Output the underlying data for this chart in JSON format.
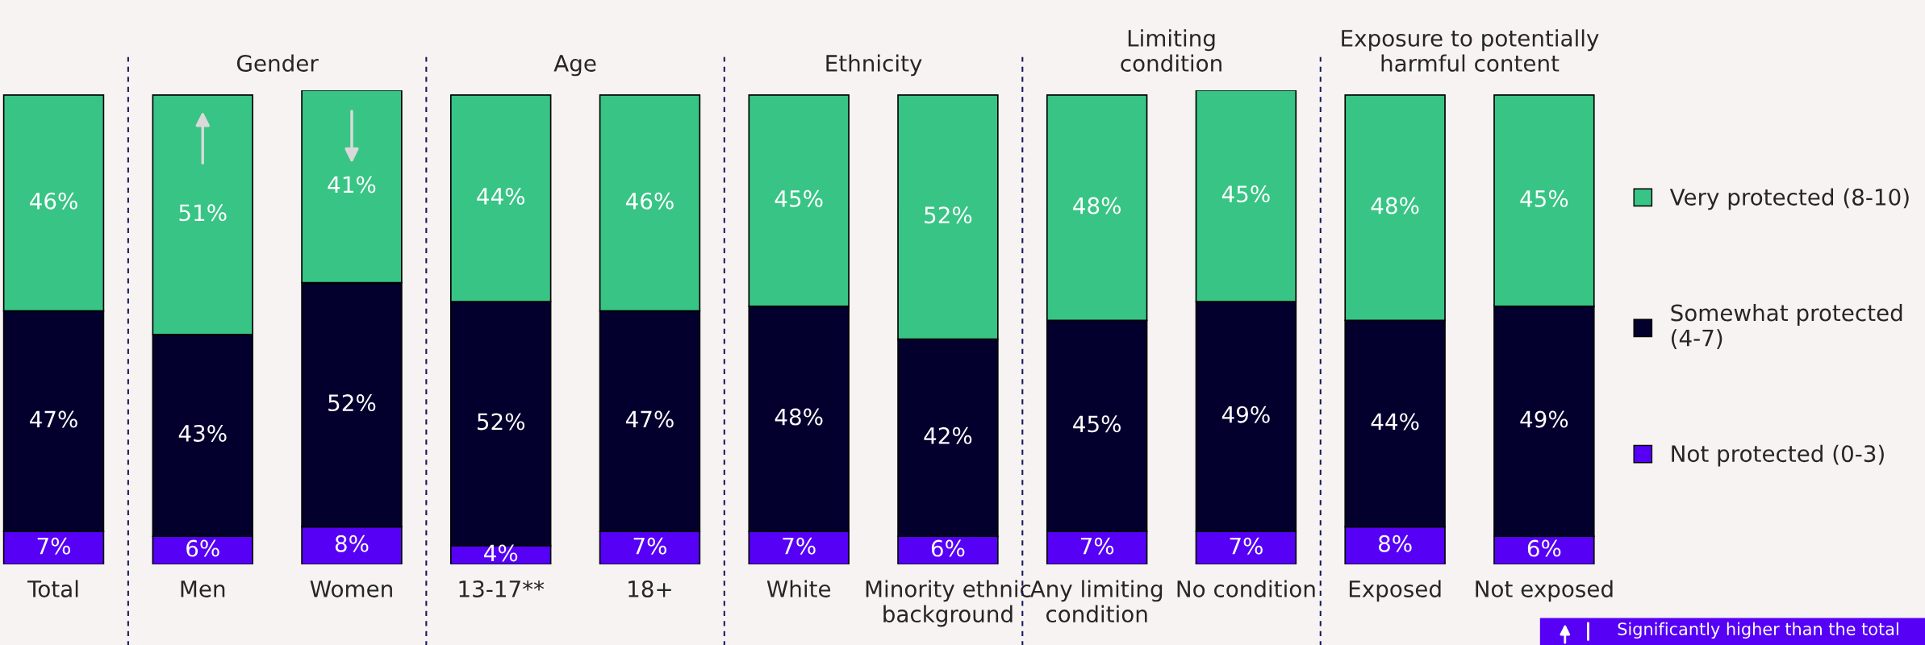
{
  "chart_data": {
    "type": "bar",
    "stacked": true,
    "legend": "right",
    "categories": [
      "Total",
      "Men",
      "Women",
      "13-17**",
      "18+",
      "White",
      "Minority ethnic\nbackground",
      "Any limiting\ncondition",
      "No condition",
      "Exposed",
      "Not exposed"
    ],
    "series": [
      {
        "name": "Not protected (0-3)",
        "color": "#5600f5",
        "values": [
          7,
          6,
          8,
          4,
          7,
          7,
          6,
          7,
          7,
          8,
          6
        ],
        "value_labels": [
          "7%",
          "6%",
          "8%",
          "4%",
          "7%",
          "7%",
          "6%",
          "7%",
          "7%",
          "8%",
          "6%"
        ]
      },
      {
        "name": "Somewhat protected\n(4-7)",
        "color": "#03002e",
        "values": [
          47,
          43,
          52,
          52,
          47,
          48,
          42,
          45,
          49,
          44,
          49
        ],
        "value_labels": [
          "47%",
          "43%",
          "52%",
          "52%",
          "47%",
          "48%",
          "42%",
          "45%",
          "49%",
          "44%",
          "49%"
        ]
      },
      {
        "name": "Very protected (8-10)",
        "color": "#38c485",
        "values": [
          46,
          51,
          41,
          44,
          46,
          45,
          52,
          48,
          45,
          48,
          45
        ],
        "value_labels": [
          "46%",
          "51%",
          "41%",
          "44%",
          "46%",
          "45%",
          "52%",
          "48%",
          "45%",
          "48%",
          "45%"
        ]
      }
    ],
    "annotations": [
      "Gender",
      "Age",
      "Ethnicity",
      "Limiting\ncondition",
      "Exposure to potentially\nharmful content",
      "Significantly higher than the total"
    ]
  }
}
